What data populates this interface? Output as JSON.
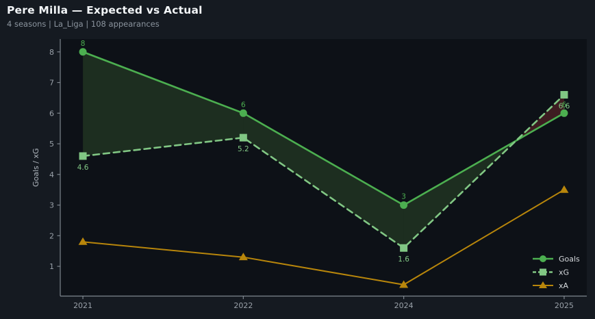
{
  "header": {
    "title": "Pere Milla — Expected vs Actual",
    "subtitle": "4 seasons | La_Liga | 108 appearances"
  },
  "colors": {
    "background": "#151a21",
    "plot_background": "#0d1117",
    "axis": "#7e868e",
    "tick_label": "#9aa1a9",
    "ylabel_text": "#aeb5bc",
    "legend_text": "#d6dadd",
    "title": "#f2f5f7",
    "subtitle": "#8b949e"
  },
  "chart_data": {
    "type": "line",
    "title": "Pere Milla — Expected vs Actual",
    "subtitle": "4 seasons | La_Liga | 108 appearances",
    "xlabel": "",
    "ylabel": "Goals / xG",
    "categories": [
      "2021",
      "2022",
      "2024",
      "2025"
    ],
    "series": [
      {
        "name": "Goals",
        "values": [
          8,
          6,
          3,
          6
        ],
        "point_labels": [
          "8",
          "6",
          "3",
          "6"
        ],
        "label_side": "above",
        "color": "#4caf50",
        "marker": "circle",
        "dash": null,
        "width": 2.6
      },
      {
        "name": "xG",
        "values": [
          4.6,
          5.2,
          1.6,
          6.6
        ],
        "point_labels": [
          "4.6",
          "5.2",
          "1.6",
          "6.6"
        ],
        "label_side": "below",
        "color": "#81c784",
        "marker": "square",
        "dash": "9 6",
        "width": 2.6
      },
      {
        "name": "xA",
        "values": [
          1.8,
          1.3,
          0.4,
          3.5
        ],
        "point_labels": [],
        "label_side": "above",
        "color": "#b8860b",
        "marker": "triangle-up",
        "dash": null,
        "width": 2
      }
    ],
    "fill_between": {
      "upper": "Goals",
      "lower": "xG",
      "above_color": "rgba(110,190,80,0.17)",
      "below_color": "rgba(205,60,60,0.26)"
    },
    "y_ticks": [
      1,
      2,
      3,
      4,
      5,
      6,
      7,
      8
    ],
    "ylim": [
      0.03,
      8.42
    ],
    "grid": false,
    "legend": {
      "position": "lower right",
      "entries": [
        "Goals",
        "xG",
        "xA"
      ]
    }
  }
}
